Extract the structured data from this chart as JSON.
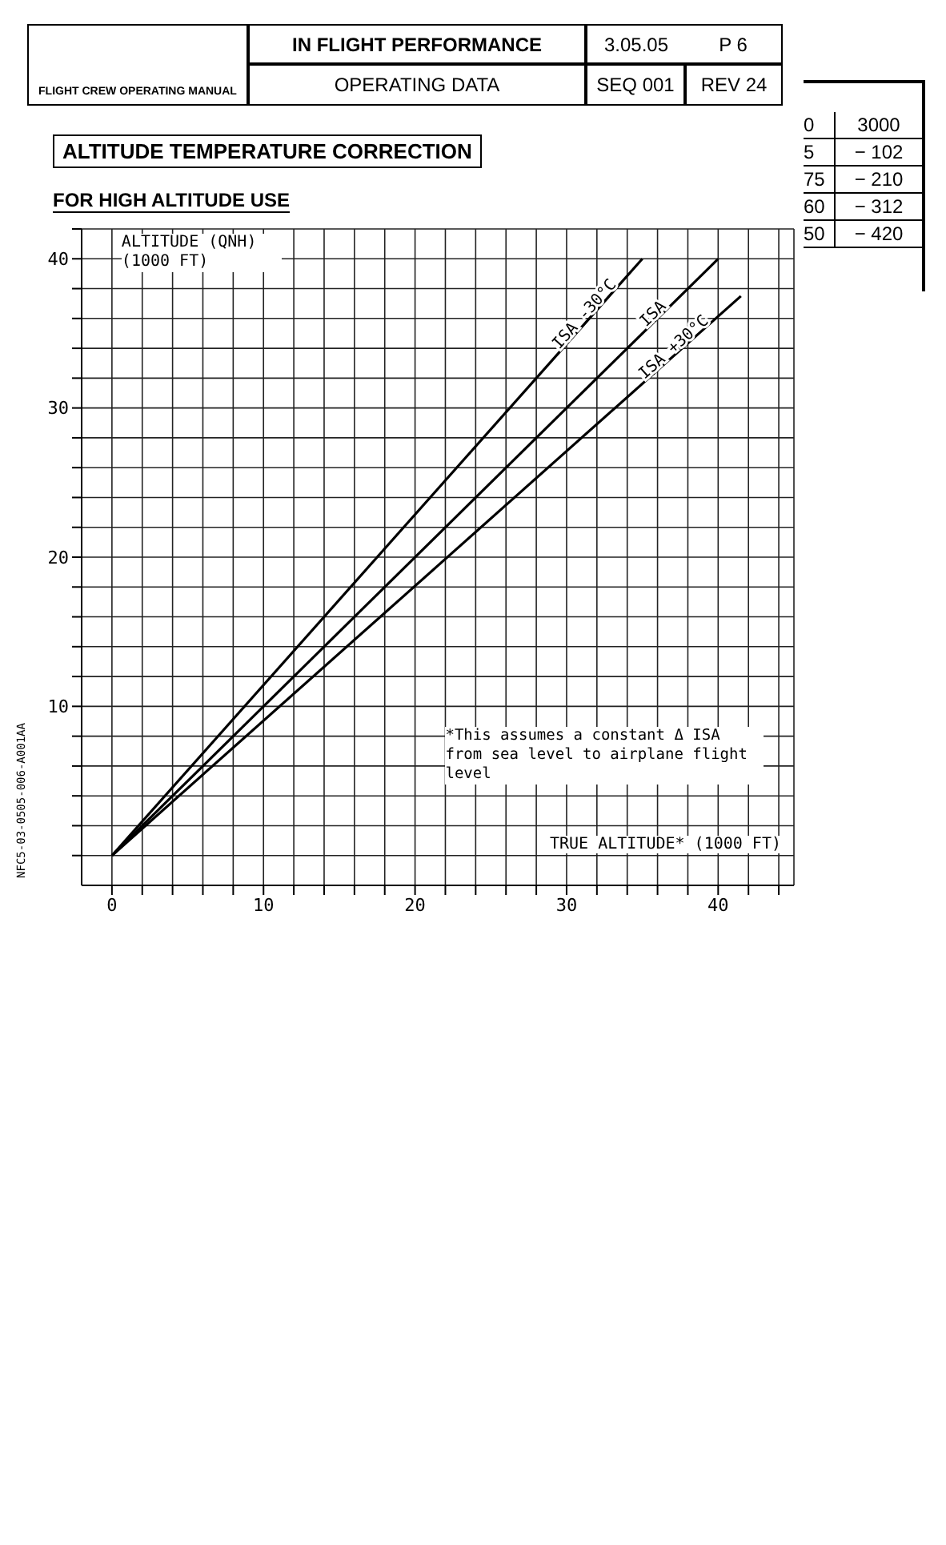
{
  "chart_data": {
    "type": "line",
    "title": "ALTITUDE TEMPERATURE CORRECTION",
    "subtitle": "FOR HIGH ALTITUDE USE",
    "xlabel": "TRUE ALTITUDE* (1000 FT)",
    "ylabel": "ALTITUDE (QNH) (1000 FT)",
    "series": [
      {
        "name": "ISA -30°C",
        "color": "#000000",
        "x": [
          0,
          35
        ],
        "values": [
          0,
          40
        ]
      },
      {
        "name": "ISA",
        "color": "#000000",
        "x": [
          0,
          40
        ],
        "values": [
          0,
          40
        ]
      },
      {
        "name": "ISA +30°C",
        "color": "#000000",
        "x": [
          0,
          41.5
        ],
        "values": [
          0,
          37.5
        ]
      }
    ],
    "xlim": [
      -2,
      45
    ],
    "ylim": [
      -2,
      42
    ],
    "xticks": [
      {
        "value": 0,
        "label": "0"
      },
      {
        "value": 2,
        "label": null
      },
      {
        "value": 4,
        "label": null
      },
      {
        "value": 6,
        "label": null
      },
      {
        "value": 8,
        "label": null
      },
      10,
      {
        "value": 12,
        "label": null
      },
      {
        "value": 14,
        "label": null
      },
      {
        "value": 16,
        "label": null
      },
      {
        "value": 18,
        "label": null
      },
      20,
      {
        "value": 22,
        "label": null
      },
      {
        "value": 24,
        "label": null
      },
      {
        "value": 26,
        "label": null
      },
      {
        "value": 28,
        "label": null
      },
      30,
      {
        "value": 32,
        "label": null
      },
      {
        "value": 34,
        "label": null
      },
      {
        "value": 36,
        "label": null
      },
      {
        "value": 38,
        "label": null
      },
      40,
      {
        "value": 42,
        "label": null
      },
      {
        "value": 44,
        "label": null
      }
    ],
    "yticks": [
      {
        "value": 0,
        "label": null
      },
      {
        "value": 2,
        "label": null
      },
      {
        "value": 4,
        "label": null
      },
      {
        "value": 6,
        "label": null
      },
      {
        "value": 8,
        "label": null
      },
      10,
      {
        "value": 12,
        "label": null
      },
      {
        "value": 14,
        "label": null
      },
      {
        "value": 16,
        "label": null
      },
      {
        "value": 18,
        "label": null
      },
      20,
      {
        "value": 22,
        "label": null
      },
      {
        "value": 24,
        "label": null
      },
      {
        "value": 26,
        "label": null
      },
      {
        "value": 28,
        "label": null
      },
      30,
      {
        "value": 32,
        "label": null
      },
      {
        "value": 34,
        "label": null
      },
      {
        "value": 36,
        "label": null
      },
      {
        "value": 38,
        "label": null
      },
      40,
      {
        "value": 42,
        "label": null
      }
    ],
    "grid": true,
    "annotations": [
      "*This assumes a constant Δ ISA from sea level to airplane flight level",
      "NFC5-03-0505-006-A001AA",
      "FLIGHT CREW OPERATING MANUAL",
      "IN FLIGHT PERFORMANCE",
      "OPERATING DATA",
      "3.05.05",
      "P 6",
      "SEQ 001",
      "REV 24",
      "0",
      "3000",
      "5",
      "− 102",
      "75",
      "− 210",
      "60",
      "− 312",
      "50",
      "− 420"
    ]
  }
}
